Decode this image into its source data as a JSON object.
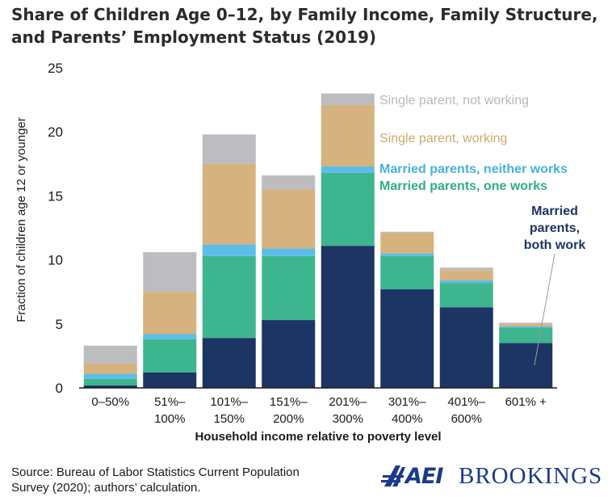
{
  "title": {
    "line1": "Share of Children Age 0–12, by Family Income, Family Structure,",
    "line2": "and Parents’ Employment Status (2019)"
  },
  "chart_data": {
    "type": "bar",
    "stacked": true,
    "categories": [
      "0–50%",
      "51%–100%",
      "101%–150%",
      "151%–200%",
      "201%–300%",
      "301%–400%",
      "401%–600%",
      "601% +"
    ],
    "category_lines": [
      [
        "0–50%"
      ],
      [
        "51%–",
        "100%"
      ],
      [
        "101%–",
        "150%"
      ],
      [
        "151%–",
        "200%"
      ],
      [
        "201%–",
        "300%"
      ],
      [
        "301%–",
        "400%"
      ],
      [
        "401%–",
        "600%"
      ],
      [
        "601% +"
      ]
    ],
    "series": [
      {
        "name": "Married parents, both work",
        "color": "#1c3564",
        "values": [
          0.2,
          1.2,
          3.9,
          5.3,
          11.1,
          7.7,
          6.3,
          3.5
        ]
      },
      {
        "name": "Married parents, one works",
        "color": "#3db58f",
        "values": [
          0.5,
          2.6,
          6.4,
          5.0,
          5.7,
          2.6,
          1.9,
          1.2
        ]
      },
      {
        "name": "Married parents, neither works",
        "color": "#5bbde8",
        "values": [
          0.4,
          0.4,
          0.9,
          0.6,
          0.5,
          0.2,
          0.2,
          0.1
        ]
      },
      {
        "name": "Single parent, working",
        "color": "#d6b27e",
        "values": [
          0.8,
          3.3,
          6.3,
          4.6,
          4.8,
          1.6,
          0.8,
          0.2
        ]
      },
      {
        "name": "Single parent, not working",
        "color": "#bdbcc0",
        "values": [
          1.4,
          3.1,
          2.3,
          1.1,
          0.9,
          0.1,
          0.2,
          0.1
        ]
      }
    ],
    "legend_labels": [
      {
        "text": "Single parent, not working",
        "color": "#b9b8bc"
      },
      {
        "text": "Single parent, working",
        "color": "#d1a76a"
      },
      {
        "text": "Married parents, neither works",
        "color": "#47b1e0"
      },
      {
        "text": "Married parents, one works",
        "color": "#2fae86"
      }
    ],
    "callout": {
      "lines": [
        "Married",
        "parents,",
        "both work"
      ],
      "color": "#1c3564"
    },
    "xlabel": "Household income relative to poverty level",
    "ylabel": "Fraction of children age 12 or younger",
    "ylim": [
      0,
      25
    ],
    "yticks": [
      0,
      5,
      10,
      15,
      20,
      25
    ],
    "grid": false
  },
  "source": {
    "line1": "Source: Bureau of Labor Statistics Current Population",
    "line2": "Survey (2020); authors’ calculation."
  },
  "logos": {
    "aei": "AEI",
    "brookings": "BROOKINGS"
  }
}
